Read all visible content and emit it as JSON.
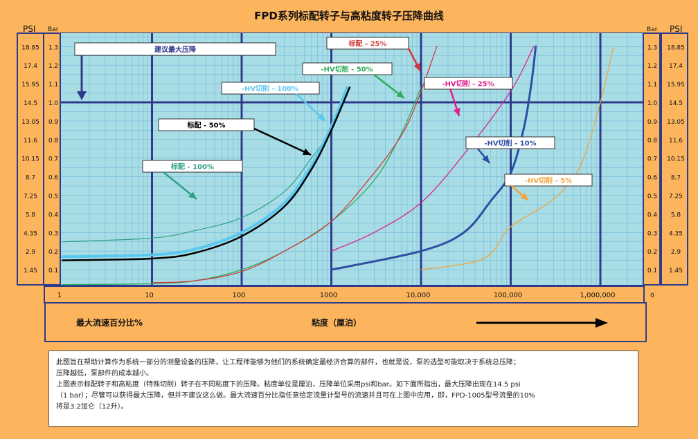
{
  "units": {
    "psi_left": "PSI",
    "bar_left": "Bar",
    "bar_right": "Bar",
    "psi_right": "PSI"
  },
  "footer": {
    "flow_label": "最大流速百分比%",
    "viscosity_label": "粘度（厘泊）"
  },
  "description": {
    "line1": "此图旨在帮助计算作为系统一部分的测量设备的压降，让工程师能够为他们的系统确定最经济合算的部件，也就是说，泵的选型可能取决于系统总压降；",
    "line2": "压降越低，泵部件的成本越小。",
    "line3": "上图表示标配转子和高粘度（特殊切削）转子在不同粘度下的压降。粘度单位是厘泊，压降单位采用psi和bar。如下面所指出，最大压降出现在14.5 psi",
    "line4": "（1 bar）；尽管可以获得最大压降，但并不建议这么做。最大流速百分比指任意给定流量计型号的流速并且可在上图中应用，即，FPD-1005型号流量的10%",
    "line5": "将是3.2加仑（12升）。"
  },
  "chart_data": {
    "type": "line",
    "title": "FPD系列标配转子与高粘度转子压降曲线",
    "x_scale": "log",
    "xlim": [
      1,
      2000000
    ],
    "ylim": [
      0,
      1.35
    ],
    "x_tick_labels": [
      "1",
      "10",
      "100",
      "1000",
      "10,000",
      "100,000",
      "1,000,000"
    ],
    "x_extra_label": "0",
    "bar_ticks": [
      "1.3",
      "1.2",
      "1.1",
      "1.0",
      "0.9",
      "0.8",
      "0.7",
      "0.6",
      "0.5",
      "0.4",
      "0.3",
      "0.2",
      "0.1"
    ],
    "psi_ticks": [
      "18.85",
      "17.4",
      "15.95",
      "14.5",
      "13.05",
      "11.6",
      "10.15",
      "8.7",
      "7.25",
      "5.8",
      "4.35",
      "2.9",
      "1.45"
    ],
    "max_line_bar": 1.0,
    "max_label": "建议最大压降",
    "series": [
      {
        "name": "标配 - 100%",
        "color": "#2e9f86",
        "width": 1.2,
        "points": [
          [
            1,
            0.25
          ],
          [
            10,
            0.27
          ],
          [
            30,
            0.31
          ],
          [
            100,
            0.38
          ],
          [
            300,
            0.52
          ],
          [
            600,
            0.7
          ],
          [
            1000,
            0.85
          ],
          [
            1500,
            1.05
          ]
        ]
      },
      {
        "name": "-HV切削 - 100%",
        "color": "#5bc8ee",
        "width": 4,
        "points": [
          [
            1,
            0.17
          ],
          [
            10,
            0.18
          ],
          [
            30,
            0.21
          ],
          [
            100,
            0.3
          ],
          [
            300,
            0.46
          ],
          [
            600,
            0.66
          ],
          [
            1000,
            0.87
          ],
          [
            1500,
            1.08
          ]
        ]
      },
      {
        "name": "标配 - 50%",
        "color": "#000000",
        "width": 2.5,
        "points": [
          [
            1,
            0.15
          ],
          [
            10,
            0.16
          ],
          [
            30,
            0.19
          ],
          [
            100,
            0.28
          ],
          [
            300,
            0.44
          ],
          [
            600,
            0.64
          ],
          [
            1000,
            0.85
          ],
          [
            1600,
            1.08
          ]
        ]
      },
      {
        "name": "-HV切削 - 50%",
        "color": "#2eab5f",
        "width": 1.3,
        "points": [
          [
            1,
            0.02
          ],
          [
            10,
            0.025
          ],
          [
            30,
            0.04
          ],
          [
            100,
            0.1
          ],
          [
            300,
            0.2
          ],
          [
            1000,
            0.36
          ],
          [
            3000,
            0.58
          ],
          [
            6000,
            0.83
          ],
          [
            10000,
            1.08
          ]
        ]
      },
      {
        "name": "标配 - 25%",
        "color": "#d03a3a",
        "width": 1.3,
        "points": [
          [
            10,
            0.03
          ],
          [
            30,
            0.04
          ],
          [
            100,
            0.09
          ],
          [
            300,
            0.2
          ],
          [
            1000,
            0.36
          ],
          [
            3000,
            0.62
          ],
          [
            6000,
            0.82
          ],
          [
            9000,
            1.0
          ],
          [
            15000,
            1.3
          ]
        ]
      },
      {
        "name": "-HV切削 - 25%",
        "color": "#dd1f8c",
        "width": 1.3,
        "points": [
          [
            1000,
            0.2
          ],
          [
            3000,
            0.3
          ],
          [
            10000,
            0.46
          ],
          [
            30000,
            0.72
          ],
          [
            100000,
            1.06
          ],
          [
            180000,
            1.3
          ]
        ]
      },
      {
        "name": "-HV切削 - 10%",
        "color": "#2f4ea3",
        "width": 3,
        "points": [
          [
            1000,
            0.1
          ],
          [
            10000,
            0.2
          ],
          [
            30000,
            0.3
          ],
          [
            60000,
            0.47
          ],
          [
            100000,
            0.62
          ],
          [
            140000,
            0.86
          ],
          [
            170000,
            1.1
          ],
          [
            190000,
            1.3
          ]
        ]
      },
      {
        "name": "-HV切削 - 5%",
        "color": "#f3a43d",
        "width": 1.3,
        "points": [
          [
            10000,
            0.1
          ],
          [
            50000,
            0.16
          ],
          [
            100000,
            0.33
          ],
          [
            300000,
            0.48
          ],
          [
            600000,
            0.66
          ],
          [
            1000000,
            1.0
          ],
          [
            1400000,
            1.3
          ]
        ]
      }
    ],
    "annotations": [
      {
        "label": "标配 - 25%",
        "color": "#d03a3a"
      },
      {
        "label": "-HV切削 - 50%",
        "color": "#2eab5f"
      },
      {
        "label": "-HV切削 - 100%",
        "color": "#5bc8ee"
      },
      {
        "label": "-HV切削 - 25%",
        "color": "#dd1f8c"
      },
      {
        "label": "标配 - 50%",
        "color": "#000000"
      },
      {
        "label": "-HV切削 - 10%",
        "color": "#2f4ea3"
      },
      {
        "label": "标配 - 100%",
        "color": "#2e9f86"
      },
      {
        "label": "-HV切削 - 5%",
        "color": "#f3a43d"
      }
    ]
  }
}
